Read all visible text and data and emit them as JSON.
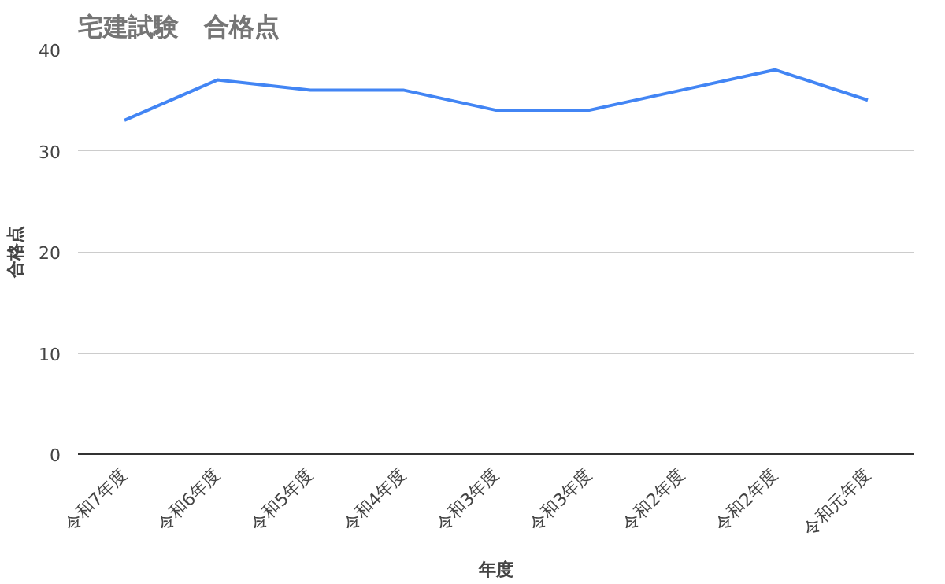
{
  "chart_data": {
    "type": "line",
    "title": "宅建試験　合格点",
    "xlabel": "年度",
    "ylabel": "合格点",
    "categories": [
      "令和7年度",
      "令和6年度",
      "令和5年度",
      "令和4年度",
      "令和3年度",
      "令和3年度",
      "令和2年度",
      "令和2年度",
      "令和元年度"
    ],
    "series": [
      {
        "color": "#4285f4",
        "values": [
          33,
          37,
          36,
          36,
          34,
          34,
          36,
          38,
          35
        ]
      }
    ],
    "ylim": [
      0,
      40
    ],
    "yticks": [
      0,
      10,
      20,
      30,
      40
    ],
    "grid": "y",
    "marker": "none",
    "line_style": "solid"
  }
}
